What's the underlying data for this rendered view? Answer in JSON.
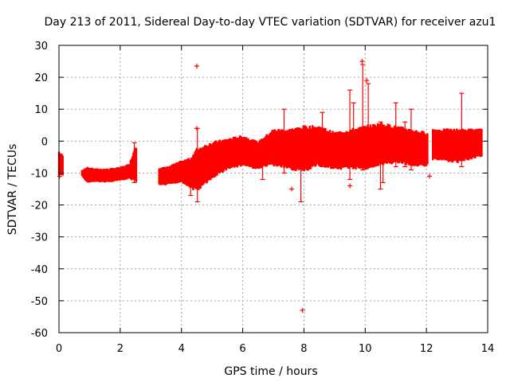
{
  "colors": {
    "data": "#ff0000",
    "frame": "#000000",
    "grid": "#a0a0a0"
  },
  "chart_data": {
    "type": "scatter",
    "title": "Day 213 of 2011, Sidereal Day-to-day VTEC variation (SDTVAR) for receiver azu1",
    "xlabel": "GPS time / hours",
    "ylabel": "SDTVAR / TECUs",
    "xlim": [
      0,
      14
    ],
    "ylim": [
      -60,
      30
    ],
    "xticks": [
      0,
      2,
      4,
      6,
      8,
      10,
      12,
      14
    ],
    "yticks": [
      -60,
      -50,
      -40,
      -30,
      -20,
      -10,
      0,
      10,
      20,
      30
    ],
    "grid": true,
    "marker": "+",
    "series": [
      {
        "name": "SDTVAR",
        "envelope": [
          {
            "x": 0.0,
            "lo": -11,
            "hi": -3
          },
          {
            "x": 0.1,
            "lo": -11,
            "hi": -4
          },
          {
            "x": 0.75,
            "lo": -11,
            "hi": -9
          },
          {
            "x": 0.9,
            "lo": -13,
            "hi": -8
          },
          {
            "x": 1.2,
            "lo": -13,
            "hi": -8.5
          },
          {
            "x": 1.6,
            "lo": -13,
            "hi": -8.5
          },
          {
            "x": 2.0,
            "lo": -12.5,
            "hi": -8
          },
          {
            "x": 2.3,
            "lo": -12,
            "hi": -7
          },
          {
            "x": 2.5,
            "lo": -13,
            "hi": -1
          },
          {
            "x": 3.25,
            "lo": -14,
            "hi": -8
          },
          {
            "x": 3.5,
            "lo": -14,
            "hi": -8
          },
          {
            "x": 4.0,
            "lo": -13,
            "hi": -6
          },
          {
            "x": 4.3,
            "lo": -15,
            "hi": -5
          },
          {
            "x": 4.5,
            "lo": -16,
            "hi": -2
          },
          {
            "x": 5.0,
            "lo": -12,
            "hi": 0
          },
          {
            "x": 5.5,
            "lo": -9,
            "hi": 1
          },
          {
            "x": 6.0,
            "lo": -8,
            "hi": 2
          },
          {
            "x": 6.5,
            "lo": -9,
            "hi": 0
          },
          {
            "x": 7.0,
            "lo": -8,
            "hi": 4
          },
          {
            "x": 7.5,
            "lo": -9,
            "hi": 4
          },
          {
            "x": 8.0,
            "lo": -10,
            "hi": 5
          },
          {
            "x": 8.5,
            "lo": -8,
            "hi": 5
          },
          {
            "x": 9.0,
            "lo": -9,
            "hi": 3
          },
          {
            "x": 9.5,
            "lo": -9,
            "hi": 4
          },
          {
            "x": 10.0,
            "lo": -9,
            "hi": 5
          },
          {
            "x": 10.5,
            "lo": -8,
            "hi": 6
          },
          {
            "x": 11.0,
            "lo": -7,
            "hi": 5
          },
          {
            "x": 11.5,
            "lo": -8,
            "hi": 4
          },
          {
            "x": 12.0,
            "lo": -8,
            "hi": 3
          },
          {
            "x": 12.2,
            "lo": -6,
            "hi": 4
          },
          {
            "x": 13.0,
            "lo": -7,
            "hi": 4
          },
          {
            "x": 13.8,
            "lo": -5,
            "hi": 4
          }
        ],
        "gaps": [
          [
            0.12,
            0.75
          ],
          [
            2.52,
            3.25
          ],
          [
            12.05,
            12.18
          ]
        ],
        "spikes": [
          {
            "x": 2.46,
            "lo": -13,
            "hi": -0.5
          },
          {
            "x": 4.52,
            "lo": -19,
            "hi": 4
          },
          {
            "x": 4.3,
            "lo": -17,
            "hi": -9
          },
          {
            "x": 6.65,
            "lo": -12,
            "hi": 0
          },
          {
            "x": 7.35,
            "lo": -10,
            "hi": 10
          },
          {
            "x": 7.9,
            "lo": -19,
            "hi": -8
          },
          {
            "x": 8.6,
            "lo": -8,
            "hi": 9
          },
          {
            "x": 9.5,
            "lo": -12,
            "hi": 16
          },
          {
            "x": 9.62,
            "lo": -8,
            "hi": 12
          },
          {
            "x": 9.92,
            "lo": -9,
            "hi": 24
          },
          {
            "x": 10.1,
            "lo": -8,
            "hi": 18
          },
          {
            "x": 10.5,
            "lo": -15,
            "hi": 6
          },
          {
            "x": 10.58,
            "lo": -13,
            "hi": 5
          },
          {
            "x": 11.0,
            "lo": -8,
            "hi": 12
          },
          {
            "x": 11.3,
            "lo": -8,
            "hi": 6
          },
          {
            "x": 11.5,
            "lo": -9,
            "hi": 10
          },
          {
            "x": 13.15,
            "lo": -8,
            "hi": 15
          }
        ],
        "outliers": [
          {
            "x": 4.5,
            "y": 23.5
          },
          {
            "x": 7.95,
            "y": -53
          },
          {
            "x": 9.9,
            "y": 25
          },
          {
            "x": 10.05,
            "y": 19
          },
          {
            "x": 9.5,
            "y": -14
          },
          {
            "x": 12.1,
            "y": -11
          },
          {
            "x": 0.02,
            "y": -11
          },
          {
            "x": 4.5,
            "y": 4
          },
          {
            "x": 7.6,
            "y": -15
          }
        ]
      }
    ]
  }
}
